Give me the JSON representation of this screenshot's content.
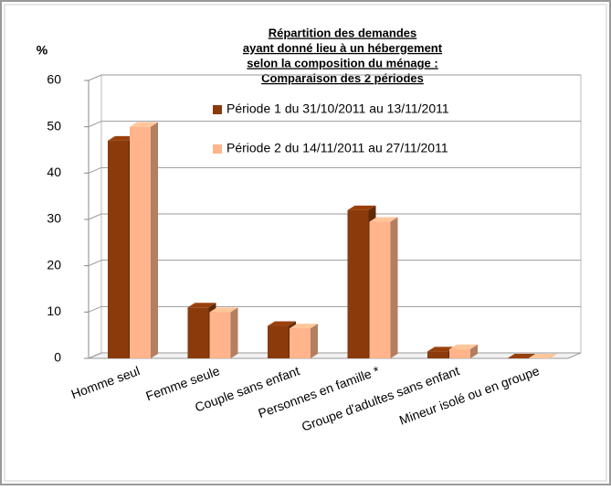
{
  "chart_data": {
    "type": "bar3d",
    "title": [
      "Répartition des demandes",
      "ayant donné lieu à un hébergement",
      "selon la composition du ménage :",
      "Comparaison des 2 périodes"
    ],
    "y_label": "%",
    "categories": [
      "Homme seul",
      "Femme seule",
      "Couple sans enfant",
      "Personnes en famille *",
      "Groupe d'adultes sans enfant",
      "Mineur isolé ou en groupe"
    ],
    "series": [
      {
        "name": "Période 1 du 31/10/2011 au 13/11/2011",
        "color": "#8b3a0c",
        "values": [
          47,
          11,
          7,
          32,
          1.5,
          0
        ]
      },
      {
        "name": "Période 2 du 14/11/2011 au 27/11/2011",
        "color": "#ffb48c",
        "values": [
          50,
          10,
          6.5,
          29.5,
          2,
          0
        ]
      }
    ],
    "ylim": [
      0,
      60
    ],
    "yticks": [
      0,
      10,
      20,
      30,
      40,
      50,
      60
    ],
    "grid": true
  }
}
